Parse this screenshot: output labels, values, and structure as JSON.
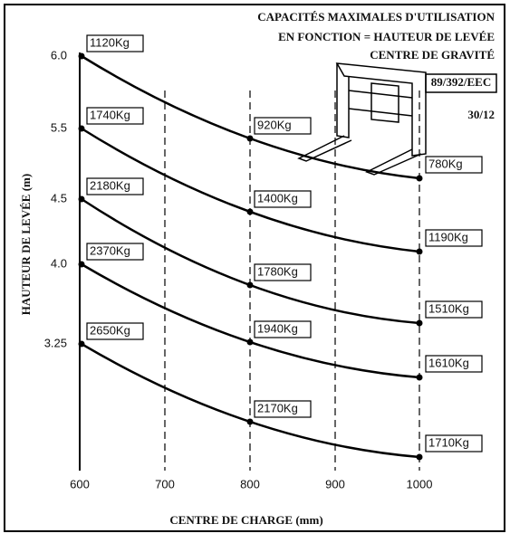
{
  "header": {
    "title_lines": [
      "CAPACITÉS MAXIMALES D'UTILISATION",
      "EN FONCTION = HAUTEUR DE LEVÉE",
      "CENTRE DE GRAVITÉ"
    ],
    "directive": "89/392/EEC",
    "code": "30/12"
  },
  "axes": {
    "x_label": "CENTRE DE CHARGE (mm)",
    "y_label": "HAUTEUR DE LEVÉE (m)",
    "x_ticks": [
      "600",
      "700",
      "800",
      "900",
      "1000"
    ]
  },
  "curves": [
    {
      "height": "6.0",
      "labels": [
        "1120Kg",
        "920Kg",
        "780Kg"
      ]
    },
    {
      "height": "5.5",
      "labels": [
        "1740Kg",
        "1400Kg",
        "1190Kg"
      ]
    },
    {
      "height": "4.5",
      "labels": [
        "2180Kg",
        "1780Kg",
        "1510Kg"
      ]
    },
    {
      "height": "4.0",
      "labels": [
        "2370Kg",
        "1940Kg",
        "1610Kg"
      ]
    },
    {
      "height": "3.25",
      "labels": [
        "2650Kg",
        "2170Kg",
        "1710Kg"
      ]
    }
  ]
}
